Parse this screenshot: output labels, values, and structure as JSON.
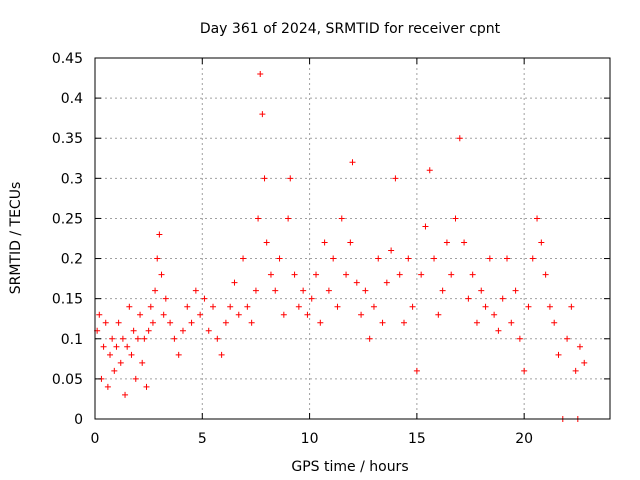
{
  "chart_data": {
    "type": "scatter",
    "title": "Day 361 of 2024, SRMTID for receiver cpnt",
    "xlabel": "GPS time / hours",
    "ylabel": "SRMTID / TECUs",
    "xlim": [
      0,
      24
    ],
    "ylim": [
      0,
      0.45
    ],
    "x_ticks": [
      0,
      5,
      10,
      15,
      20
    ],
    "x_tick_labels": [
      "0",
      "5",
      "10",
      "15",
      "20"
    ],
    "y_ticks": [
      0,
      0.05,
      0.1,
      0.15,
      0.2,
      0.25,
      0.3,
      0.35,
      0.4,
      0.45
    ],
    "y_tick_labels": [
      "0",
      "0.05",
      "0.1",
      "0.15",
      "0.2",
      "0.25",
      "0.3",
      "0.35",
      "0.4",
      "0.45"
    ],
    "grid": true,
    "legend": "none",
    "marker": "plus",
    "color": "#ff0000",
    "series": [
      {
        "name": "SRMTID",
        "points": [
          [
            0.1,
            0.11
          ],
          [
            0.2,
            0.13
          ],
          [
            0.3,
            0.05
          ],
          [
            0.4,
            0.09
          ],
          [
            0.5,
            0.12
          ],
          [
            0.6,
            0.04
          ],
          [
            0.7,
            0.08
          ],
          [
            0.8,
            0.1
          ],
          [
            0.9,
            0.06
          ],
          [
            1.0,
            0.09
          ],
          [
            1.1,
            0.12
          ],
          [
            1.2,
            0.07
          ],
          [
            1.3,
            0.1
          ],
          [
            1.4,
            0.03
          ],
          [
            1.5,
            0.09
          ],
          [
            1.6,
            0.14
          ],
          [
            1.7,
            0.08
          ],
          [
            1.8,
            0.11
          ],
          [
            1.9,
            0.05
          ],
          [
            2.0,
            0.1
          ],
          [
            2.1,
            0.13
          ],
          [
            2.2,
            0.07
          ],
          [
            2.3,
            0.1
          ],
          [
            2.4,
            0.04
          ],
          [
            2.5,
            0.11
          ],
          [
            2.6,
            0.14
          ],
          [
            2.7,
            0.12
          ],
          [
            2.8,
            0.16
          ],
          [
            2.9,
            0.2
          ],
          [
            3.0,
            0.23
          ],
          [
            3.1,
            0.18
          ],
          [
            3.2,
            0.13
          ],
          [
            3.3,
            0.15
          ],
          [
            3.5,
            0.12
          ],
          [
            3.7,
            0.1
          ],
          [
            3.9,
            0.08
          ],
          [
            4.1,
            0.11
          ],
          [
            4.3,
            0.14
          ],
          [
            4.5,
            0.12
          ],
          [
            4.7,
            0.16
          ],
          [
            4.9,
            0.13
          ],
          [
            5.1,
            0.15
          ],
          [
            5.3,
            0.11
          ],
          [
            5.5,
            0.14
          ],
          [
            5.7,
            0.1
          ],
          [
            5.9,
            0.08
          ],
          [
            6.1,
            0.12
          ],
          [
            6.3,
            0.14
          ],
          [
            6.5,
            0.17
          ],
          [
            6.7,
            0.13
          ],
          [
            6.9,
            0.2
          ],
          [
            7.1,
            0.14
          ],
          [
            7.3,
            0.12
          ],
          [
            7.5,
            0.16
          ],
          [
            7.6,
            0.25
          ],
          [
            7.7,
            0.43
          ],
          [
            7.8,
            0.38
          ],
          [
            7.9,
            0.3
          ],
          [
            8.0,
            0.22
          ],
          [
            8.2,
            0.18
          ],
          [
            8.4,
            0.16
          ],
          [
            8.6,
            0.2
          ],
          [
            8.8,
            0.13
          ],
          [
            9.0,
            0.25
          ],
          [
            9.1,
            0.3
          ],
          [
            9.3,
            0.18
          ],
          [
            9.5,
            0.14
          ],
          [
            9.7,
            0.16
          ],
          [
            9.9,
            0.13
          ],
          [
            10.1,
            0.15
          ],
          [
            10.3,
            0.18
          ],
          [
            10.5,
            0.12
          ],
          [
            10.7,
            0.22
          ],
          [
            10.9,
            0.16
          ],
          [
            11.1,
            0.2
          ],
          [
            11.3,
            0.14
          ],
          [
            11.5,
            0.25
          ],
          [
            11.7,
            0.18
          ],
          [
            11.9,
            0.22
          ],
          [
            12.0,
            0.32
          ],
          [
            12.2,
            0.17
          ],
          [
            12.4,
            0.13
          ],
          [
            12.6,
            0.16
          ],
          [
            12.8,
            0.1
          ],
          [
            13.0,
            0.14
          ],
          [
            13.2,
            0.2
          ],
          [
            13.4,
            0.12
          ],
          [
            13.6,
            0.17
          ],
          [
            13.8,
            0.21
          ],
          [
            14.0,
            0.3
          ],
          [
            14.2,
            0.18
          ],
          [
            14.4,
            0.12
          ],
          [
            14.6,
            0.2
          ],
          [
            14.8,
            0.14
          ],
          [
            15.0,
            0.06
          ],
          [
            15.2,
            0.18
          ],
          [
            15.4,
            0.24
          ],
          [
            15.6,
            0.31
          ],
          [
            15.8,
            0.2
          ],
          [
            16.0,
            0.13
          ],
          [
            16.2,
            0.16
          ],
          [
            16.4,
            0.22
          ],
          [
            16.6,
            0.18
          ],
          [
            16.8,
            0.25
          ],
          [
            17.0,
            0.35
          ],
          [
            17.2,
            0.22
          ],
          [
            17.4,
            0.15
          ],
          [
            17.6,
            0.18
          ],
          [
            17.8,
            0.12
          ],
          [
            18.0,
            0.16
          ],
          [
            18.2,
            0.14
          ],
          [
            18.4,
            0.2
          ],
          [
            18.6,
            0.13
          ],
          [
            18.8,
            0.11
          ],
          [
            19.0,
            0.15
          ],
          [
            19.2,
            0.2
          ],
          [
            19.4,
            0.12
          ],
          [
            19.6,
            0.16
          ],
          [
            19.8,
            0.1
          ],
          [
            20.0,
            0.06
          ],
          [
            20.2,
            0.14
          ],
          [
            20.4,
            0.2
          ],
          [
            20.6,
            0.25
          ],
          [
            20.8,
            0.22
          ],
          [
            21.0,
            0.18
          ],
          [
            21.2,
            0.14
          ],
          [
            21.4,
            0.12
          ],
          [
            21.6,
            0.08
          ],
          [
            21.8,
            0.0
          ],
          [
            22.0,
            0.1
          ],
          [
            22.2,
            0.14
          ],
          [
            22.4,
            0.06
          ],
          [
            22.5,
            0.0
          ],
          [
            22.6,
            0.09
          ],
          [
            22.8,
            0.07
          ]
        ]
      }
    ]
  }
}
